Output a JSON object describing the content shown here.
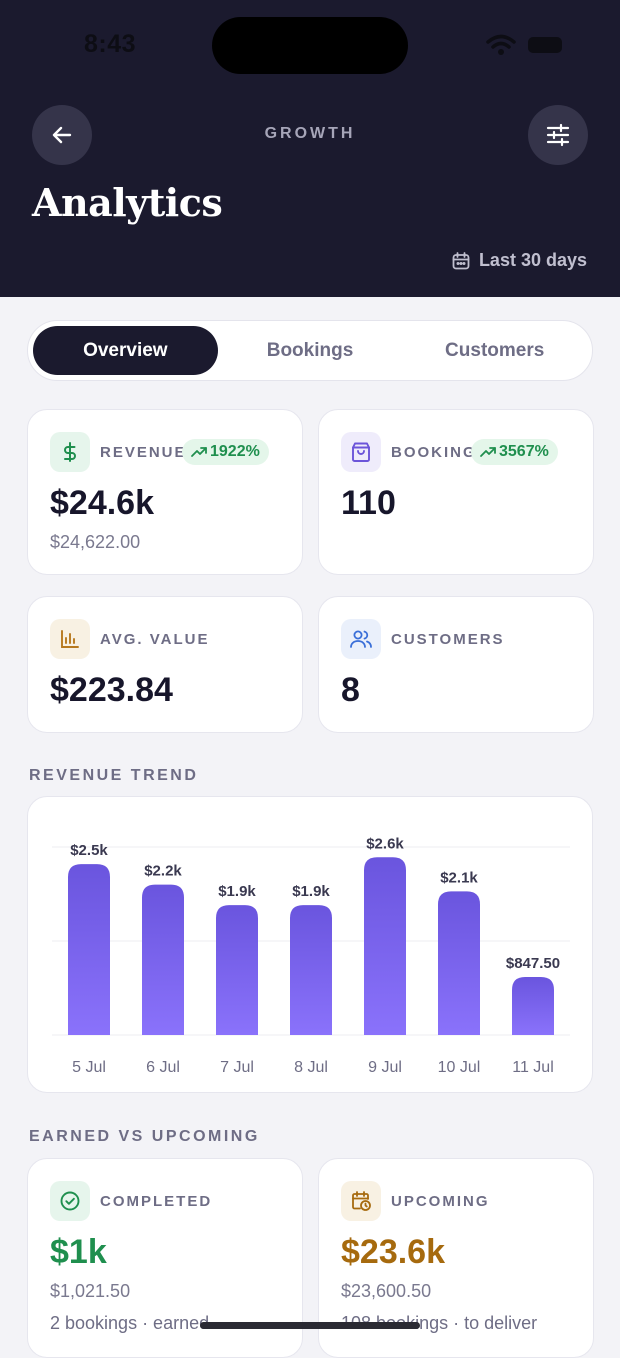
{
  "status_bar": {
    "time": "8:43"
  },
  "header": {
    "eyebrow": "GROWTH",
    "title": "Analytics",
    "date_range": "Last 30 days",
    "icons": {
      "back": "arrow-left-icon",
      "filter": "sliders-icon",
      "calendar": "calendar-icon"
    }
  },
  "tabs": [
    {
      "label": "Overview",
      "active": true
    },
    {
      "label": "Bookings",
      "active": false
    },
    {
      "label": "Customers",
      "active": false
    }
  ],
  "stats": {
    "revenue": {
      "label": "REVENUE",
      "value": "$24.6k",
      "sub": "$24,622.00",
      "change": "1922%",
      "icon": "dollar-icon",
      "color": "#1f8f4e"
    },
    "bookings": {
      "label": "BOOKINGS",
      "value": "110",
      "change": "3567%",
      "icon": "shopping-bag-icon",
      "color": "#6c55d9"
    },
    "avg_value": {
      "label": "AVG. VALUE",
      "value": "$223.84",
      "icon": "bar-chart-icon",
      "color": "#b7791f"
    },
    "customers": {
      "label": "CUSTOMERS",
      "value": "8",
      "icon": "users-icon",
      "color": "#3a6fd8"
    }
  },
  "revenue_trend": {
    "section_label": "REVENUE TREND"
  },
  "chart_data": {
    "type": "bar",
    "categories": [
      "5 Jul",
      "6 Jul",
      "7 Jul",
      "8 Jul",
      "9 Jul",
      "10 Jul",
      "11 Jul"
    ],
    "values": [
      2500,
      2200,
      1900,
      1900,
      2600,
      2100,
      847.5
    ],
    "data_labels": [
      "$2.5k",
      "$2.2k",
      "$1.9k",
      "$1.9k",
      "$2.6k",
      "$2.1k",
      "$847.50"
    ],
    "title": "",
    "xlabel": "",
    "ylabel": "",
    "ylim": [
      0,
      2750
    ],
    "grid": true,
    "bar_color_top": "#6a55de",
    "bar_color_bottom": "#8a72fb"
  },
  "earned_vs_upcoming": {
    "section_label": "EARNED VS UPCOMING",
    "completed": {
      "label": "COMPLETED",
      "value": "$1k",
      "sub": "$1,021.50",
      "note": "2 bookings · earned",
      "icon": "check-circle-icon",
      "color": "#1f8f4e"
    },
    "upcoming": {
      "label": "UPCOMING",
      "value": "$23.6k",
      "sub": "$23,600.50",
      "note": "108 bookings · to deliver",
      "icon": "calendar-clock-icon",
      "color": "#a66a0e"
    }
  }
}
